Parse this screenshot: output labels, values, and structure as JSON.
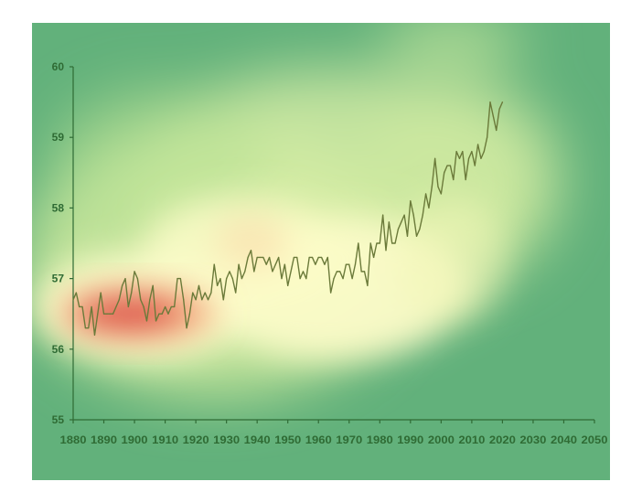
{
  "chart_data": {
    "type": "line",
    "title": "",
    "xlabel": "",
    "ylabel": "",
    "xlim": [
      1880,
      2050
    ],
    "ylim": [
      55,
      60
    ],
    "x_ticks": [
      "1880",
      "1890",
      "1900",
      "1910",
      "1920",
      "1930",
      "1940",
      "1950",
      "1960",
      "1970",
      "1980",
      "1990",
      "2000",
      "2010",
      "2020",
      "2030",
      "2040",
      "2050"
    ],
    "y_ticks": [
      "55",
      "56",
      "57",
      "58",
      "59",
      "60"
    ],
    "grid": false,
    "legend": "none",
    "series": [
      {
        "color": "#6b7a3a",
        "points": [
          [
            1880,
            56.7
          ],
          [
            1881,
            56.8
          ],
          [
            1882,
            56.6
          ],
          [
            1883,
            56.6
          ],
          [
            1884,
            56.3
          ],
          [
            1885,
            56.3
          ],
          [
            1886,
            56.6
          ],
          [
            1887,
            56.2
          ],
          [
            1888,
            56.5
          ],
          [
            1889,
            56.8
          ],
          [
            1890,
            56.5
          ],
          [
            1891,
            56.5
          ],
          [
            1892,
            56.5
          ],
          [
            1893,
            56.5
          ],
          [
            1894,
            56.6
          ],
          [
            1895,
            56.7
          ],
          [
            1896,
            56.9
          ],
          [
            1897,
            57.0
          ],
          [
            1898,
            56.6
          ],
          [
            1899,
            56.8
          ],
          [
            1900,
            57.1
          ],
          [
            1901,
            57.0
          ],
          [
            1902,
            56.7
          ],
          [
            1903,
            56.6
          ],
          [
            1904,
            56.4
          ],
          [
            1905,
            56.7
          ],
          [
            1906,
            56.9
          ],
          [
            1907,
            56.4
          ],
          [
            1908,
            56.5
          ],
          [
            1909,
            56.5
          ],
          [
            1910,
            56.6
          ],
          [
            1911,
            56.5
          ],
          [
            1912,
            56.6
          ],
          [
            1913,
            56.6
          ],
          [
            1914,
            57.0
          ],
          [
            1915,
            57.0
          ],
          [
            1916,
            56.7
          ],
          [
            1917,
            56.3
          ],
          [
            1918,
            56.5
          ],
          [
            1919,
            56.8
          ],
          [
            1920,
            56.7
          ],
          [
            1921,
            56.9
          ],
          [
            1922,
            56.7
          ],
          [
            1923,
            56.8
          ],
          [
            1924,
            56.7
          ],
          [
            1925,
            56.8
          ],
          [
            1926,
            57.2
          ],
          [
            1927,
            56.9
          ],
          [
            1928,
            57.0
          ],
          [
            1929,
            56.7
          ],
          [
            1930,
            57.0
          ],
          [
            1931,
            57.1
          ],
          [
            1932,
            57.0
          ],
          [
            1933,
            56.8
          ],
          [
            1934,
            57.2
          ],
          [
            1935,
            57.0
          ],
          [
            1936,
            57.1
          ],
          [
            1937,
            57.3
          ],
          [
            1938,
            57.4
          ],
          [
            1939,
            57.1
          ],
          [
            1940,
            57.3
          ],
          [
            1941,
            57.3
          ],
          [
            1942,
            57.3
          ],
          [
            1943,
            57.2
          ],
          [
            1944,
            57.3
          ],
          [
            1945,
            57.1
          ],
          [
            1946,
            57.2
          ],
          [
            1947,
            57.3
          ],
          [
            1948,
            57.0
          ],
          [
            1949,
            57.2
          ],
          [
            1950,
            56.9
          ],
          [
            1951,
            57.1
          ],
          [
            1952,
            57.3
          ],
          [
            1953,
            57.3
          ],
          [
            1954,
            57.0
          ],
          [
            1955,
            57.1
          ],
          [
            1956,
            57.0
          ],
          [
            1957,
            57.3
          ],
          [
            1958,
            57.3
          ],
          [
            1959,
            57.2
          ],
          [
            1960,
            57.3
          ],
          [
            1961,
            57.3
          ],
          [
            1962,
            57.2
          ],
          [
            1963,
            57.3
          ],
          [
            1964,
            56.8
          ],
          [
            1965,
            57.0
          ],
          [
            1966,
            57.1
          ],
          [
            1967,
            57.1
          ],
          [
            1968,
            57.0
          ],
          [
            1969,
            57.2
          ],
          [
            1970,
            57.2
          ],
          [
            1971,
            57.0
          ],
          [
            1972,
            57.2
          ],
          [
            1973,
            57.5
          ],
          [
            1974,
            57.1
          ],
          [
            1975,
            57.1
          ],
          [
            1976,
            56.9
          ],
          [
            1977,
            57.5
          ],
          [
            1978,
            57.3
          ],
          [
            1979,
            57.5
          ],
          [
            1980,
            57.5
          ],
          [
            1981,
            57.9
          ],
          [
            1982,
            57.4
          ],
          [
            1983,
            57.8
          ],
          [
            1984,
            57.5
          ],
          [
            1985,
            57.5
          ],
          [
            1986,
            57.7
          ],
          [
            1987,
            57.8
          ],
          [
            1988,
            57.9
          ],
          [
            1989,
            57.6
          ],
          [
            1990,
            58.1
          ],
          [
            1991,
            57.9
          ],
          [
            1992,
            57.6
          ],
          [
            1993,
            57.7
          ],
          [
            1994,
            57.9
          ],
          [
            1995,
            58.2
          ],
          [
            1996,
            58.0
          ],
          [
            1997,
            58.3
          ],
          [
            1998,
            58.7
          ],
          [
            1999,
            58.3
          ],
          [
            2000,
            58.2
          ],
          [
            2001,
            58.5
          ],
          [
            2002,
            58.6
          ],
          [
            2003,
            58.6
          ],
          [
            2004,
            58.4
          ],
          [
            2005,
            58.8
          ],
          [
            2006,
            58.7
          ],
          [
            2007,
            58.8
          ],
          [
            2008,
            58.4
          ],
          [
            2009,
            58.7
          ],
          [
            2010,
            58.8
          ],
          [
            2011,
            58.6
          ],
          [
            2012,
            58.9
          ],
          [
            2013,
            58.7
          ],
          [
            2014,
            58.8
          ],
          [
            2015,
            59.0
          ],
          [
            2016,
            59.5
          ],
          [
            2017,
            59.3
          ],
          [
            2018,
            59.1
          ],
          [
            2019,
            59.4
          ],
          [
            2020,
            59.5
          ]
        ]
      }
    ]
  },
  "style": {
    "axis_color": "#2f6b34",
    "line_color": "#6b7a3a",
    "background_green": "#62b17b",
    "heat_yellow": "#fbfbc8",
    "heat_red": "#d83a3a"
  }
}
